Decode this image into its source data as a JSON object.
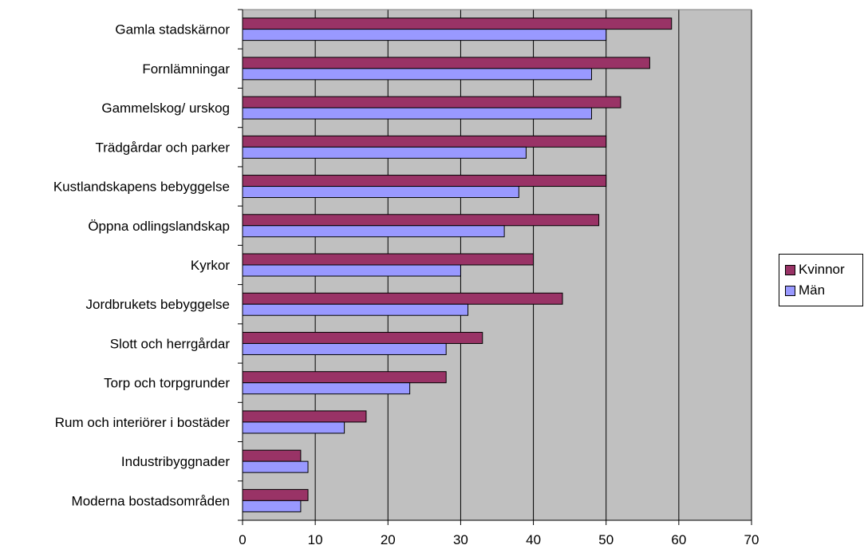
{
  "chart_data": {
    "type": "bar",
    "orientation": "horizontal",
    "title": "",
    "xlabel": "",
    "ylabel": "",
    "xlim": [
      0,
      70
    ],
    "x_ticks": [
      0,
      10,
      20,
      30,
      40,
      50,
      60,
      70
    ],
    "grid": true,
    "legend_position": "right",
    "plot_background": "#c0c0c0",
    "categories": [
      "Gamla stadskärnor",
      "Fornlämningar",
      "Gammelskog/ urskog",
      "Trädgårdar och parker",
      "Kustlandskapens bebyggelse",
      "Öppna odlingslandskap",
      "Kyrkor",
      "Jordbrukets bebyggelse",
      "Slott och herrgårdar",
      "Torp och torpgrunder",
      "Rum och interiörer i bostäder",
      "Industribyggnader",
      "Moderna bostadsområden"
    ],
    "series": [
      {
        "name": "Kvinnor",
        "color": "#993366",
        "values": [
          59,
          56,
          52,
          50,
          50,
          49,
          40,
          44,
          33,
          28,
          17,
          8,
          9
        ]
      },
      {
        "name": "Män",
        "color": "#9999ff",
        "values": [
          50,
          48,
          48,
          39,
          38,
          36,
          30,
          31,
          28,
          23,
          14,
          9,
          8
        ]
      }
    ]
  }
}
